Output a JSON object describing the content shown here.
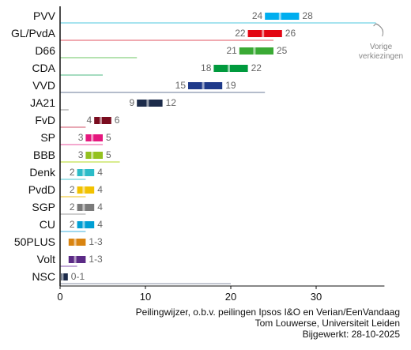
{
  "chart_data": {
    "type": "bar",
    "title": "",
    "xlabel": "",
    "ylabel": "",
    "xlim": [
      0,
      38
    ],
    "xticks": [
      0,
      10,
      20,
      30
    ],
    "grid": false,
    "note": [
      "Vorige",
      "verkiezingen"
    ],
    "categories": [
      "PVV",
      "GL/PvdA",
      "D66",
      "CDA",
      "VVD",
      "JA21",
      "FvD",
      "SP",
      "BBB",
      "Denk",
      "PvdD",
      "SGP",
      "CU",
      "50PLUS",
      "Volt",
      "NSC"
    ],
    "series": [
      {
        "name": "",
        "values": [
          37,
          25,
          9,
          5,
          24,
          1,
          3,
          5,
          7,
          3,
          3,
          3,
          3,
          0,
          2,
          20
        ]
      },
      {
        "name": "",
        "values": [
          24,
          22,
          21,
          18,
          15,
          9,
          4,
          3,
          3,
          2,
          2,
          2,
          2,
          1,
          1,
          0
        ]
      },
      {
        "name": "",
        "values": [
          28,
          26,
          25,
          22,
          19,
          12,
          6,
          5,
          5,
          4,
          4,
          4,
          4,
          3,
          3,
          1
        ]
      }
    ],
    "range_labels": [
      {
        "low": "24",
        "high": "28"
      },
      {
        "low": "22",
        "high": "26"
      },
      {
        "low": "21",
        "high": "25"
      },
      {
        "low": "18",
        "high": "22"
      },
      {
        "low": "15",
        "high": "19"
      },
      {
        "low": "9",
        "high": "12"
      },
      {
        "low": "4",
        "high": "6"
      },
      {
        "low": "3",
        "high": "5"
      },
      {
        "low": "3",
        "high": "5"
      },
      {
        "low": "2",
        "high": "4"
      },
      {
        "low": "2",
        "high": "4"
      },
      {
        "low": "2",
        "high": "4"
      },
      {
        "low": "2",
        "high": "4"
      },
      {
        "low": "",
        "high": "1-3"
      },
      {
        "low": "",
        "high": "1-3"
      },
      {
        "low": "",
        "high": "0-1"
      }
    ],
    "colors": {
      "bar": [
        "#00aeef",
        "#e30613",
        "#3aaa35",
        "#009a3d",
        "#1f3a8a",
        "#1c2b4a",
        "#7a0c1f",
        "#e5177e",
        "#94c11f",
        "#2bbcc8",
        "#f2c200",
        "#7a7a7a",
        "#009fd4",
        "#d98410",
        "#5b2a86",
        "#1c2b4a"
      ],
      "previous": [
        "#a6e3ef",
        "#f0a9b0",
        "#b5e2b0",
        "#a6dcc0",
        "#b4bccb",
        "#c9c9c9",
        "#e8a8b4",
        "#f4a9cf",
        "#d9ec8f",
        "#a5e3e8",
        "#f8e08b",
        "#cfcfcf",
        "#9fd8ee",
        "#f0c896",
        "#c2aad8",
        "#c4c8d2"
      ]
    }
  },
  "footer": {
    "line1": "Peilingwijzer, o.b.v. peilingen Ipsos I&O en Verian/EenVandaag",
    "line2": "Tom Louwerse, Universiteit Leiden",
    "line3": "Bijgewerkt: 28-10-2025"
  }
}
